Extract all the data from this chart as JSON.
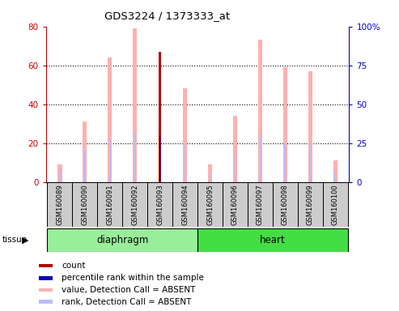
{
  "title": "GDS3224 / 1373333_at",
  "samples": [
    "GSM160089",
    "GSM160090",
    "GSM160091",
    "GSM160092",
    "GSM160093",
    "GSM160094",
    "GSM160095",
    "GSM160096",
    "GSM160097",
    "GSM160098",
    "GSM160099",
    "GSM160100"
  ],
  "value_absent": [
    9,
    31,
    64,
    79,
    null,
    48,
    9,
    34,
    73,
    59,
    57,
    11
  ],
  "rank_absent": [
    6,
    16,
    22,
    25,
    null,
    20,
    5,
    16,
    24,
    20,
    20,
    6
  ],
  "count": [
    null,
    null,
    null,
    null,
    67,
    null,
    null,
    null,
    null,
    null,
    null,
    null
  ],
  "percentile_rank": [
    null,
    null,
    null,
    null,
    24,
    null,
    null,
    null,
    null,
    null,
    null,
    null
  ],
  "ylim_left": [
    0,
    80
  ],
  "ylim_right": [
    0,
    100
  ],
  "yticks_left": [
    0,
    20,
    40,
    60,
    80
  ],
  "yticks_right": [
    0,
    25,
    50,
    75,
    100
  ],
  "colors": {
    "count": "#bb0000",
    "percentile_rank": "#0000bb",
    "value_absent": "#ffb0b0",
    "rank_absent": "#bbbbff",
    "axis_left": "#cc0000",
    "axis_right": "#0000cc",
    "sample_box": "#cccccc",
    "tissue_diaphragm": "#99ee99",
    "tissue_heart": "#44dd44"
  },
  "legend_items": [
    {
      "label": "count",
      "color": "#bb0000"
    },
    {
      "label": "percentile rank within the sample",
      "color": "#0000bb"
    },
    {
      "label": "value, Detection Call = ABSENT",
      "color": "#ffb0b0"
    },
    {
      "label": "rank, Detection Call = ABSENT",
      "color": "#bbbbff"
    }
  ],
  "value_bar_width": 0.18,
  "rank_bar_width": 0.06,
  "count_bar_width": 0.1,
  "pct_bar_width": 0.04
}
